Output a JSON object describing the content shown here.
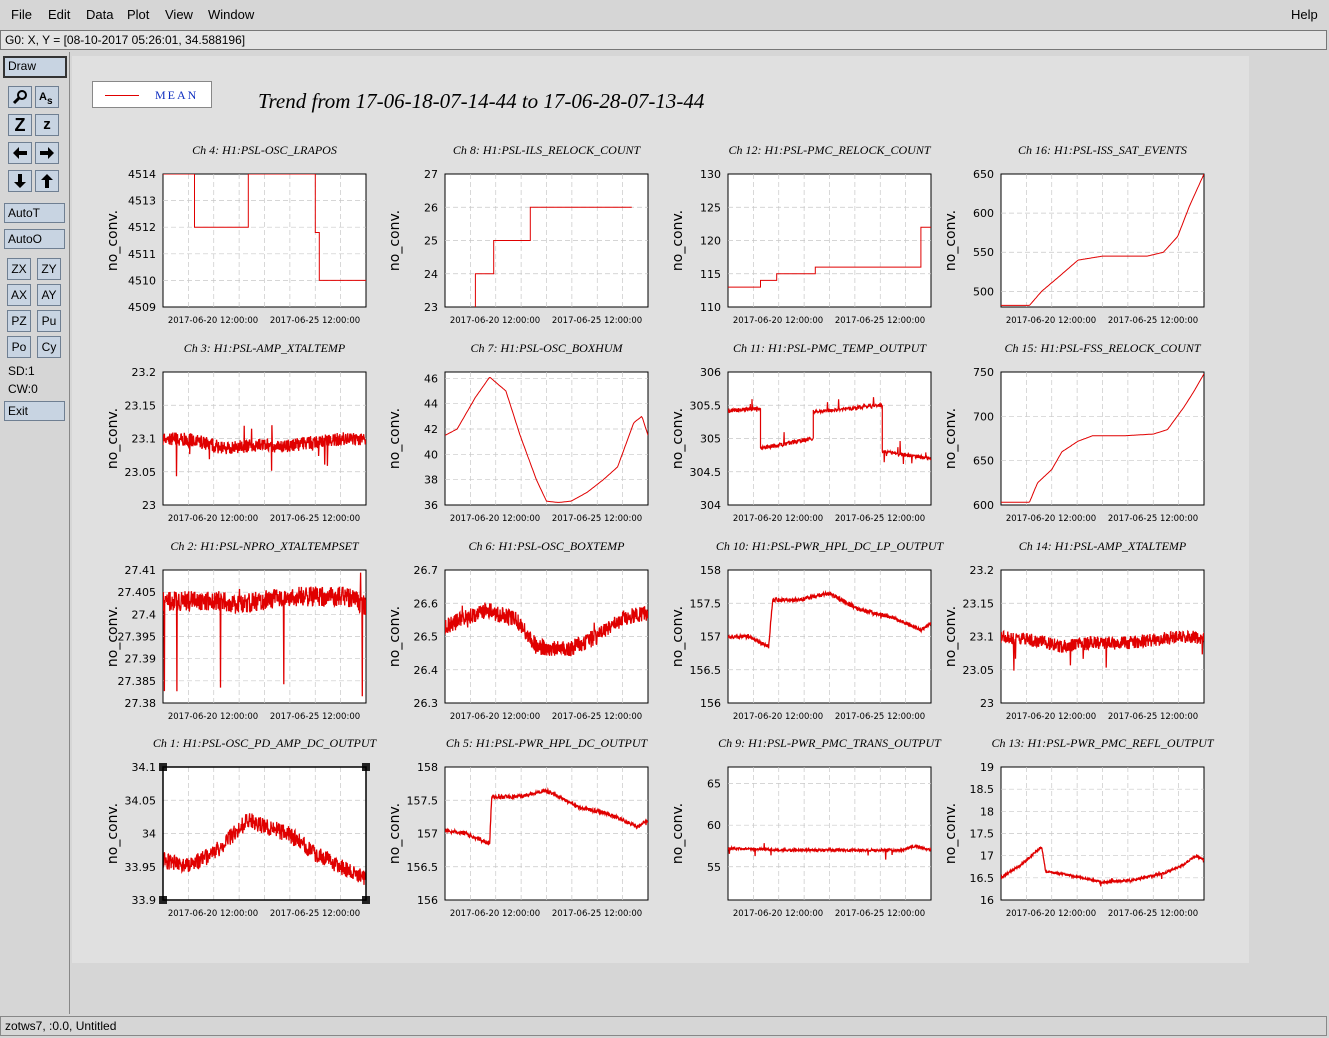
{
  "menu": {
    "file": "File",
    "edit": "Edit",
    "data": "Data",
    "plot": "Plot",
    "view": "View",
    "window": "Window",
    "help": "Help"
  },
  "coord_readout": "G0: X, Y = [08-10-2017 05:26:01, 34.588196]",
  "toolbar": {
    "draw": "Draw",
    "zoom_z1": "Z",
    "zoom_z2": "z",
    "autot": "AutoT",
    "autoo": "AutoO",
    "zx": "ZX",
    "zy": "ZY",
    "ax": "AX",
    "ay": "AY",
    "pz": "PZ",
    "pu": "Pu",
    "po": "Po",
    "cy": "Cy",
    "sd": "SD:1",
    "cw": "CW:0",
    "exit": "Exit",
    "icons": [
      "magnify-icon",
      "text-as-icon",
      "zoom-z-icon",
      "zoom-small-z-icon",
      "arrow-left-icon",
      "arrow-right-icon",
      "arrow-down-icon",
      "arrow-up-icon"
    ]
  },
  "legend": {
    "label": "MEAN",
    "color": "#e00000"
  },
  "title": "Trend from 17-06-18-07-14-44 to 17-06-28-07-13-44",
  "status": "zotws7, :0.0, Untitled",
  "colors": {
    "trace": "#e00000",
    "plot_bg": "#ffffff",
    "canvas_bg": "#e0e0e0",
    "button": "#c8d4e2"
  },
  "chart_data": [
    {
      "type": "line",
      "title": "Ch 4: H1:PSL-OSC_LRAPOS",
      "ylabel": "no_conv.",
      "ylim": [
        4509,
        4514
      ],
      "yticks": [
        "4509",
        "4510",
        "4511",
        "4512",
        "4513",
        "4514"
      ],
      "xticks": [
        "2017-06-20 12:00:00",
        "2017-06-25 12:00:00"
      ],
      "series": [
        {
          "kind": "step",
          "x": [
            0,
            0.155,
            0.155,
            0.42,
            0.42,
            0.75,
            0.75,
            0.77,
            0.77,
            1
          ],
          "values": [
            4514,
            4514,
            4512,
            4512,
            4514,
            4514,
            4511.8,
            4511.8,
            4510,
            4510
          ]
        }
      ]
    },
    {
      "type": "line",
      "title": "Ch 8: H1:PSL-ILS_RELOCK_COUNT",
      "ylabel": "no_conv.",
      "ylim": [
        23,
        27
      ],
      "yticks": [
        "23",
        "24",
        "25",
        "26",
        "27"
      ],
      "xticks": [
        "2017-06-20 12:00:00",
        "2017-06-25 12:00:00"
      ],
      "series": [
        {
          "kind": "step",
          "x": [
            0.15,
            0.15,
            0.24,
            0.24,
            0.42,
            0.42,
            0.92
          ],
          "values": [
            23,
            24,
            24,
            25,
            25,
            26,
            26
          ]
        }
      ]
    },
    {
      "type": "line",
      "title": "Ch 12: H1:PSL-PMC_RELOCK_COUNT",
      "ylabel": "no_conv.",
      "ylim": [
        110,
        130
      ],
      "yticks": [
        "110",
        "115",
        "120",
        "125",
        "130"
      ],
      "xticks": [
        "2017-06-20 12:00:00",
        "2017-06-25 12:00:00"
      ],
      "series": [
        {
          "kind": "step",
          "x": [
            0,
            0.16,
            0.16,
            0.24,
            0.24,
            0.43,
            0.43,
            0.95,
            0.95,
            1
          ],
          "values": [
            113,
            113,
            114,
            114,
            115,
            115,
            116,
            116,
            122,
            122
          ]
        }
      ]
    },
    {
      "type": "line",
      "title": "Ch 16: H1:PSL-ISS_SAT_EVENTS",
      "ylabel": "no_conv.",
      "ylim": [
        480,
        650
      ],
      "yticks": [
        "500",
        "550",
        "600",
        "650"
      ],
      "xticks": [
        "2017-06-20 12:00:00",
        "2017-06-25 12:00:00"
      ],
      "series": [
        {
          "kind": "line",
          "x": [
            0,
            0.14,
            0.2,
            0.3,
            0.38,
            0.5,
            0.6,
            0.72,
            0.8,
            0.87,
            0.93,
            1
          ],
          "values": [
            482,
            482,
            500,
            522,
            540,
            545,
            545,
            545,
            550,
            570,
            610,
            650
          ]
        }
      ]
    },
    {
      "type": "line",
      "title": "Ch 3: H1:PSL-AMP_XTALTEMP",
      "ylabel": "no_conv.",
      "ylim": [
        23,
        23.2
      ],
      "yticks": [
        "23",
        "23.05",
        "23.1",
        "23.15",
        "23.2"
      ],
      "xticks": [
        "2017-06-20 12:00:00",
        "2017-06-25 12:00:00"
      ],
      "series": [
        {
          "kind": "noisy",
          "x": [
            0,
            0.15,
            0.3,
            0.45,
            0.6,
            0.75,
            0.9,
            1
          ],
          "values": [
            23.1,
            23.098,
            23.085,
            23.09,
            23.088,
            23.095,
            23.1,
            23.097
          ],
          "noise": 0.02,
          "spikes": 0.04
        }
      ]
    },
    {
      "type": "line",
      "title": "Ch 7: H1:PSL-OSC_BOXHUM",
      "ylabel": "no_conv.",
      "ylim": [
        36,
        46.5
      ],
      "yticks": [
        "36",
        "38",
        "40",
        "42",
        "44",
        "46"
      ],
      "xticks": [
        "2017-06-20 12:00:00",
        "2017-06-25 12:00:00"
      ],
      "series": [
        {
          "kind": "line",
          "x": [
            0,
            0.06,
            0.15,
            0.22,
            0.3,
            0.37,
            0.45,
            0.5,
            0.56,
            0.62,
            0.7,
            0.78,
            0.85,
            0.93,
            0.97,
            1
          ],
          "values": [
            41.5,
            42,
            44.5,
            46.1,
            45,
            41.5,
            38,
            36.3,
            36.2,
            36.3,
            37,
            38,
            39,
            42.5,
            43,
            41.5
          ]
        }
      ]
    },
    {
      "type": "line",
      "title": "Ch 11: H1:PSL-PMC_TEMP_OUTPUT",
      "ylabel": "no_conv.",
      "ylim": [
        304,
        306
      ],
      "yticks": [
        "304",
        "304.5",
        "305",
        "305.5",
        "306"
      ],
      "xticks": [
        "2017-06-20 12:00:00",
        "2017-06-25 12:00:00"
      ],
      "series": [
        {
          "kind": "segments",
          "noise": 0.06,
          "segments": [
            {
              "x0": 0,
              "x1": 0.16,
              "y0": 305.42,
              "y1": 305.45
            },
            {
              "x0": 0.16,
              "x1": 0.42,
              "y0": 304.85,
              "y1": 305.0
            },
            {
              "x0": 0.42,
              "x1": 0.76,
              "y0": 305.4,
              "y1": 305.5
            },
            {
              "x0": 0.76,
              "x1": 1,
              "y0": 304.8,
              "y1": 304.7
            }
          ]
        }
      ]
    },
    {
      "type": "line",
      "title": "Ch 15: H1:PSL-FSS_RELOCK_COUNT",
      "ylabel": "no_conv.",
      "ylim": [
        600,
        750
      ],
      "yticks": [
        "600",
        "650",
        "700",
        "750"
      ],
      "xticks": [
        "2017-06-20 12:00:00",
        "2017-06-25 12:00:00"
      ],
      "series": [
        {
          "kind": "line",
          "x": [
            0,
            0.14,
            0.18,
            0.25,
            0.3,
            0.38,
            0.45,
            0.6,
            0.75,
            0.82,
            0.9,
            0.95,
            1
          ],
          "values": [
            603,
            603,
            625,
            640,
            660,
            672,
            678,
            678,
            680,
            685,
            710,
            728,
            748
          ]
        }
      ]
    },
    {
      "type": "line",
      "title": "Ch 2: H1:PSL-NPRO_XTALTEMPSET",
      "ylabel": "no_conv.",
      "ylim": [
        27.38,
        27.41
      ],
      "yticks": [
        "27.38",
        "27.385",
        "27.39",
        "27.395",
        "27.4",
        "27.405",
        "27.41"
      ],
      "xticks": [
        "2017-06-20 12:00:00",
        "2017-06-25 12:00:00"
      ],
      "series": [
        {
          "kind": "noisy",
          "x": [
            0,
            0.3,
            0.35,
            0.6,
            0.9,
            1
          ],
          "values": [
            27.403,
            27.403,
            27.402,
            27.404,
            27.404,
            27.402
          ],
          "noise": 0.0045,
          "spikes": 0.02
        }
      ]
    },
    {
      "type": "line",
      "title": "Ch 6: H1:PSL-OSC_BOXTEMP",
      "ylabel": "no_conv.",
      "ylim": [
        26.3,
        26.7
      ],
      "yticks": [
        "26.3",
        "26.4",
        "26.5",
        "26.6",
        "26.7"
      ],
      "xticks": [
        "2017-06-20 12:00:00",
        "2017-06-25 12:00:00"
      ],
      "series": [
        {
          "kind": "noisy",
          "x": [
            0,
            0.2,
            0.35,
            0.45,
            0.6,
            0.75,
            0.9,
            1
          ],
          "values": [
            26.53,
            26.58,
            26.55,
            26.47,
            26.46,
            26.5,
            26.56,
            26.57
          ],
          "noise": 0.05,
          "spikes": 0.03
        }
      ]
    },
    {
      "type": "line",
      "title": "Ch 10: H1:PSL-PWR_HPL_DC_LP_OUTPUT",
      "ylabel": "no_conv.",
      "ylim": [
        156,
        158
      ],
      "yticks": [
        "156",
        "156.5",
        "157",
        "157.5",
        "158"
      ],
      "xticks": [
        "2017-06-20 12:00:00",
        "2017-06-25 12:00:00"
      ],
      "series": [
        {
          "kind": "noisy",
          "x": [
            0,
            0.1,
            0.2,
            0.22,
            0.35,
            0.5,
            0.65,
            0.8,
            0.95,
            1
          ],
          "values": [
            157,
            157,
            156.85,
            157.55,
            157.55,
            157.65,
            157.4,
            157.3,
            157.1,
            157.2
          ],
          "noise": 0.06,
          "spikes": 0.05
        }
      ]
    },
    {
      "type": "line",
      "title": "Ch 14: H1:PSL-AMP_XTALTEMP",
      "ylabel": "no_conv.",
      "ylim": [
        23,
        23.2
      ],
      "yticks": [
        "23",
        "23.05",
        "23.1",
        "23.15",
        "23.2"
      ],
      "xticks": [
        "2017-06-20 12:00:00",
        "2017-06-25 12:00:00"
      ],
      "series": [
        {
          "kind": "noisy",
          "x": [
            0,
            0.15,
            0.3,
            0.45,
            0.6,
            0.75,
            0.9,
            1
          ],
          "values": [
            23.1,
            23.095,
            23.085,
            23.09,
            23.09,
            23.095,
            23.1,
            23.097
          ],
          "noise": 0.02,
          "spikes": 0.04
        }
      ]
    },
    {
      "type": "line",
      "title": "Ch 1: H1:PSL-OSC_PD_AMP_DC_OUTPUT",
      "ylabel": "no_conv.",
      "ylim": [
        33.9,
        34.1
      ],
      "yticks": [
        "33.9",
        "33.95",
        "34",
        "34.05",
        "34.1"
      ],
      "xticks": [
        "2017-06-20 12:00:00",
        "2017-06-25 12:00:00"
      ],
      "series": [
        {
          "kind": "noisy",
          "x": [
            0,
            0.12,
            0.25,
            0.35,
            0.42,
            0.5,
            0.62,
            0.75,
            0.88,
            1
          ],
          "values": [
            33.96,
            33.95,
            33.97,
            34.0,
            34.02,
            34.01,
            34.0,
            33.97,
            33.95,
            33.93
          ],
          "noise": 0.025,
          "spikes": 0.01
        }
      ]
    },
    {
      "type": "line",
      "title": "Ch 5: H1:PSL-PWR_HPL_DC_OUTPUT",
      "ylabel": "no_conv.",
      "ylim": [
        156,
        158
      ],
      "yticks": [
        "156",
        "156.5",
        "157",
        "157.5",
        "158"
      ],
      "xticks": [
        "2017-06-20 12:00:00",
        "2017-06-25 12:00:00"
      ],
      "series": [
        {
          "kind": "noisy",
          "x": [
            0,
            0.1,
            0.22,
            0.23,
            0.35,
            0.5,
            0.65,
            0.8,
            0.95,
            1
          ],
          "values": [
            157.05,
            157,
            156.85,
            157.55,
            157.55,
            157.65,
            157.4,
            157.3,
            157.1,
            157.2
          ],
          "noise": 0.06,
          "spikes": 0.05
        }
      ]
    },
    {
      "type": "line",
      "title": "Ch 9: H1:PSL-PWR_PMC_TRANS_OUTPUT",
      "ylabel": "no_conv.",
      "ylim": [
        51,
        67
      ],
      "yticks": [
        "55",
        "60",
        "65"
      ],
      "xticks": [
        "2017-06-20 12:00:00",
        "2017-06-25 12:00:00"
      ],
      "series": [
        {
          "kind": "noisy",
          "x": [
            0,
            0.3,
            0.5,
            0.7,
            0.85,
            0.92,
            1
          ],
          "values": [
            57.2,
            57,
            57,
            57,
            57,
            57.5,
            57
          ],
          "noise": 0.3,
          "spikes": 1.2
        }
      ]
    },
    {
      "type": "line",
      "title": "Ch 13: H1:PSL-PWR_PMC_REFL_OUTPUT",
      "ylabel": "no_conv.",
      "ylim": [
        16,
        19
      ],
      "yticks": [
        "16",
        "16.5",
        "17",
        "17.5",
        "18",
        "18.5",
        "19"
      ],
      "xticks": [
        "2017-06-20 12:00:00",
        "2017-06-25 12:00:00"
      ],
      "series": [
        {
          "kind": "noisy",
          "x": [
            0,
            0.1,
            0.2,
            0.22,
            0.35,
            0.5,
            0.65,
            0.8,
            0.9,
            0.96,
            1
          ],
          "values": [
            16.5,
            16.8,
            17.2,
            16.65,
            16.55,
            16.4,
            16.45,
            16.6,
            16.8,
            17,
            16.9
          ],
          "noise": 0.05,
          "spikes": 0.1
        }
      ]
    }
  ]
}
